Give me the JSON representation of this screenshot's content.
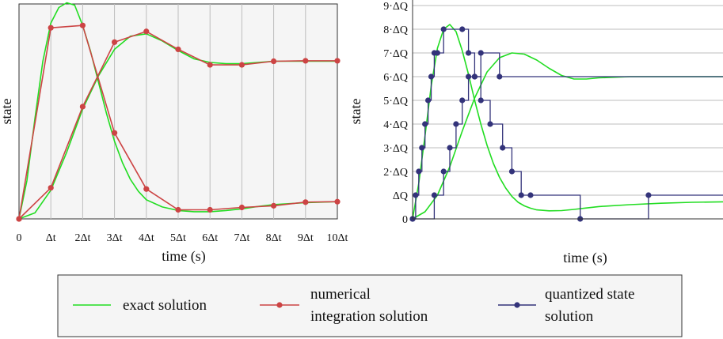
{
  "chart_data": [
    {
      "type": "line",
      "xlabel": "time (s)",
      "ylabel": "state",
      "x_tick_labels": [
        "0",
        "Δt",
        "2Δt",
        "3Δt",
        "4Δt",
        "5Δt",
        "6Δt",
        "7Δt",
        "8Δt",
        "9Δt",
        "10Δt"
      ],
      "xlim": [
        0,
        10
      ],
      "ylim": [
        0,
        9
      ],
      "grid": "vertical",
      "series": [
        {
          "name": "exact solution",
          "color": "#22dd22",
          "x": [
            0,
            0.25,
            0.5,
            0.75,
            1,
            1.25,
            1.5,
            1.75,
            2,
            2.25,
            2.5,
            2.75,
            3,
            3.25,
            3.5,
            3.75,
            4,
            4.5,
            5,
            5.5,
            6,
            6.5,
            7,
            7.5,
            8,
            9,
            10
          ],
          "y": [
            0,
            1.6,
            4.2,
            6.6,
            8.2,
            8.85,
            9.05,
            8.95,
            8.1,
            7.0,
            5.7,
            4.4,
            3.25,
            2.35,
            1.65,
            1.15,
            0.8,
            0.5,
            0.35,
            0.3,
            0.3,
            0.35,
            0.42,
            0.52,
            0.6,
            0.68,
            0.72
          ]
        },
        {
          "name": "exact solution",
          "color": "#22dd22",
          "x": [
            0,
            0.5,
            1,
            1.5,
            2,
            2.5,
            3,
            3.5,
            4,
            4.5,
            5,
            5.5,
            6,
            6.5,
            7,
            7.5,
            8,
            9,
            10
          ],
          "y": [
            0,
            0.25,
            1.2,
            2.8,
            4.6,
            6.0,
            7.1,
            7.65,
            7.75,
            7.45,
            7.05,
            6.7,
            6.55,
            6.5,
            6.5,
            6.55,
            6.6,
            6.6,
            6.6
          ]
        },
        {
          "name": "numerical integration solution",
          "color": "#cc4444",
          "x": [
            0,
            1,
            2,
            3,
            4,
            5,
            6,
            7,
            8,
            9,
            10
          ],
          "y": [
            0,
            8.0,
            8.1,
            3.6,
            1.25,
            0.38,
            0.38,
            0.48,
            0.55,
            0.7,
            0.72
          ]
        },
        {
          "name": "numerical integration solution",
          "color": "#cc4444",
          "x": [
            0,
            1,
            2,
            3,
            4,
            5,
            6,
            7,
            8,
            9,
            10
          ],
          "y": [
            0,
            1.3,
            4.7,
            7.4,
            7.85,
            7.1,
            6.45,
            6.45,
            6.6,
            6.62,
            6.62
          ]
        }
      ]
    },
    {
      "type": "line",
      "xlabel": "time (s)",
      "ylabel": "state",
      "y_tick_labels": [
        "0",
        "ΔQ",
        "2·ΔQ",
        "3·ΔQ",
        "4·ΔQ",
        "5·ΔQ",
        "6·ΔQ",
        "7·ΔQ",
        "8·ΔQ",
        "9·ΔQ"
      ],
      "ylim": [
        0,
        9
      ],
      "grid": "horizontal",
      "series": [
        {
          "name": "exact solution",
          "color": "#22dd22",
          "x": [
            0,
            2,
            4,
            6,
            8,
            10,
            12,
            14,
            16,
            18,
            20,
            22,
            24,
            26,
            28,
            30,
            32,
            34,
            36,
            38,
            40,
            44,
            48,
            52,
            56,
            60,
            70,
            80,
            90,
            100
          ],
          "y": [
            0,
            1.5,
            3.5,
            5.6,
            7.2,
            8.0,
            8.2,
            7.9,
            7.1,
            6.1,
            5.0,
            4.0,
            3.1,
            2.35,
            1.75,
            1.3,
            0.95,
            0.7,
            0.55,
            0.45,
            0.38,
            0.34,
            0.35,
            0.4,
            0.46,
            0.52,
            0.6,
            0.66,
            0.7,
            0.72
          ]
        },
        {
          "name": "exact solution",
          "color": "#22dd22",
          "x": [
            0,
            4,
            8,
            12,
            16,
            20,
            24,
            28,
            32,
            36,
            40,
            44,
            48,
            52,
            56,
            60,
            70,
            80,
            90,
            100
          ],
          "y": [
            0,
            0.3,
            1.0,
            2.2,
            3.7,
            5.1,
            6.2,
            6.8,
            7.0,
            6.95,
            6.7,
            6.35,
            6.05,
            5.9,
            5.9,
            5.95,
            6.0,
            6.0,
            6.0,
            6.0
          ]
        },
        {
          "name": "quantized state solution",
          "color": "#33337a",
          "x": [
            0,
            1,
            2,
            3,
            4,
            5,
            6,
            7,
            8,
            10,
            16,
            18,
            20,
            22,
            25,
            29,
            32,
            35,
            38,
            54,
            76,
            100
          ],
          "y": [
            0,
            1,
            2,
            3,
            4,
            5,
            6,
            7,
            7,
            8,
            8,
            7,
            6,
            5,
            4,
            3,
            2,
            1,
            1,
            0,
            1,
            1
          ]
        },
        {
          "name": "quantized state solution",
          "color": "#33337a",
          "x": [
            0,
            7,
            10,
            12,
            14,
            16,
            18,
            20,
            22,
            28,
            100
          ],
          "y": [
            0,
            1,
            2,
            3,
            4,
            5,
            6,
            6,
            7,
            6,
            6
          ]
        }
      ]
    }
  ],
  "legend": {
    "items": [
      {
        "label_lines": [
          "exact solution"
        ],
        "color": "#22dd22",
        "marker": false
      },
      {
        "label_lines": [
          "numerical",
          "integration solution"
        ],
        "color": "#cc4444",
        "marker": true
      },
      {
        "label_lines": [
          "quantized state",
          "solution"
        ],
        "color": "#33337a",
        "marker": true
      }
    ]
  }
}
